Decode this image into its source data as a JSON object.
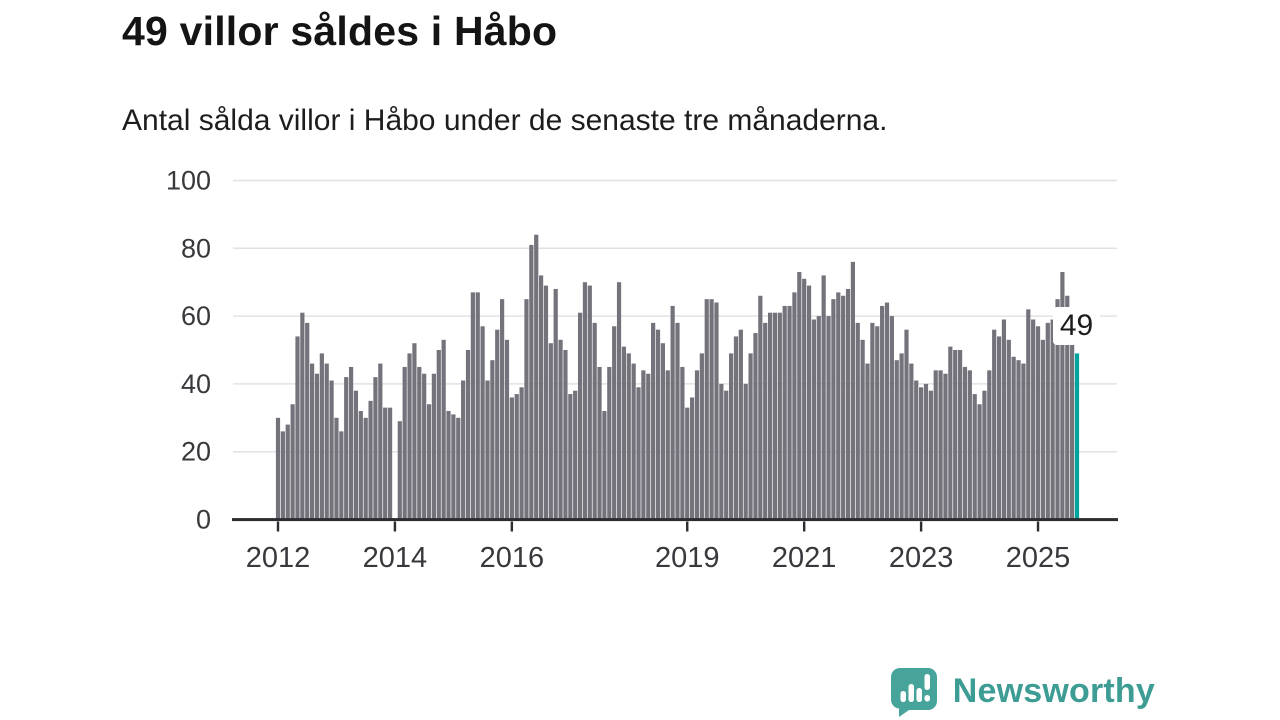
{
  "header": {
    "title": "49 villor såldes i Håbo",
    "subtitle": "Antal sålda villor i Håbo under de senaste tre månaderna."
  },
  "annotation": {
    "value_label": "49"
  },
  "branding": {
    "name": "Newsworthy",
    "logo_icon": "bar-chart-speech-bubble-icon",
    "text_color": "#3d9c94",
    "icon_bg_color": "#47a49b"
  },
  "chart_data": {
    "type": "bar",
    "title": "49 villor såldes i Håbo",
    "subtitle": "Antal sålda villor i Håbo under de senaste tre månaderna.",
    "x_frequency": "monthly",
    "x_start": "2012-01",
    "note": "one empty slot (missing month) appears as null just before the 2014 tick; last bar is highlighted teal with data label 49",
    "values": [
      30,
      26,
      28,
      34,
      54,
      61,
      58,
      46,
      43,
      49,
      46,
      41,
      30,
      26,
      42,
      45,
      38,
      32,
      30,
      35,
      42,
      46,
      33,
      33,
      null,
      29,
      45,
      49,
      52,
      45,
      43,
      34,
      43,
      50,
      53,
      32,
      31,
      30,
      41,
      50,
      67,
      67,
      57,
      41,
      47,
      56,
      65,
      53,
      36,
      37,
      39,
      65,
      81,
      84,
      72,
      69,
      52,
      68,
      53,
      50,
      37,
      38,
      61,
      70,
      69,
      58,
      45,
      32,
      45,
      57,
      70,
      51,
      49,
      46,
      39,
      44,
      43,
      58,
      56,
      52,
      44,
      63,
      58,
      45,
      33,
      36,
      44,
      49,
      65,
      65,
      64,
      40,
      38,
      49,
      54,
      56,
      40,
      49,
      55,
      66,
      58,
      61,
      61,
      61,
      63,
      63,
      67,
      73,
      71,
      69,
      59,
      60,
      72,
      60,
      65,
      67,
      66,
      68,
      76,
      58,
      53,
      46,
      58,
      57,
      63,
      64,
      60,
      47,
      49,
      56,
      46,
      41,
      39,
      40,
      38,
      44,
      44,
      43,
      51,
      50,
      50,
      45,
      44,
      37,
      34,
      38,
      44,
      56,
      54,
      59,
      53,
      48,
      47,
      46,
      62,
      59,
      57,
      53,
      58,
      59,
      65,
      73,
      66,
      52,
      49
    ],
    "highlight_last_bar": true,
    "highlight_value": 49,
    "bar_color": "#74737c",
    "highlight_color": "#00a49e",
    "grid": true,
    "gridline_color": "#e2e2e4",
    "axis_color": "#2c2c31",
    "tick_label_color": "#38383d",
    "ylim": [
      0,
      100
    ],
    "yticks": [
      "0",
      "20",
      "40",
      "60",
      "80",
      "100"
    ],
    "ytick_values": [
      0,
      20,
      40,
      60,
      80,
      100
    ],
    "xticks": [
      {
        "label": "2012",
        "slot": 0
      },
      {
        "label": "2014",
        "slot": 24
      },
      {
        "label": "2016",
        "slot": 48
      },
      {
        "label": "2019",
        "slot": 84
      },
      {
        "label": "2021",
        "slot": 108
      },
      {
        "label": "2023",
        "slot": 132
      },
      {
        "label": "2025",
        "slot": 156
      }
    ],
    "legend": "none"
  }
}
